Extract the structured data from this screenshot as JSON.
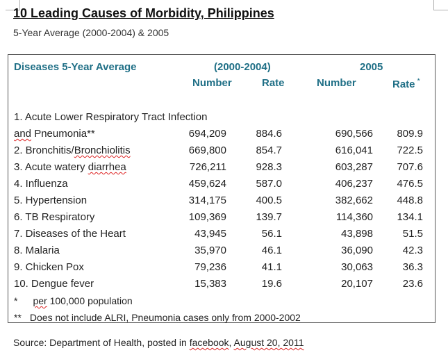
{
  "title": "10 Leading Causes of Morbidity, Philippines",
  "subtitle": "5-Year Average (2000-2004) & 2005",
  "header": {
    "diseases": "Diseases 5-Year Average",
    "period1": "(2000-2004)",
    "period2": "2005",
    "number1": "Number",
    "rate1": "Rate",
    "number2": "Number",
    "rate2": "Rate",
    "rate2_mark": "*"
  },
  "row1_line1": "1. Acute Lower Respiratory Tract Infection",
  "row1_and": "and",
  "row1_rest": " Pneumonia**",
  "rows": [
    {
      "name": "",
      "num1": "694,209",
      "rate1": "884.6",
      "num2": "690,566",
      "rate2": "809.9"
    },
    {
      "name": "2. Bronchitis/",
      "name_squig": "Bronchiolitis",
      "num1": "669,800",
      "rate1": "854.7",
      "num2": "616,041",
      "rate2": "722.5"
    },
    {
      "name": "3. Acute watery ",
      "name_squig": "diarrhea",
      "num1": "726,211",
      "rate1": "928.3",
      "num2": "603,287",
      "rate2": "707.6"
    },
    {
      "name": "4. Influenza",
      "num1": "459,624",
      "rate1": "587.0",
      "num2": "406,237",
      "rate2": "476.5"
    },
    {
      "name": "5. Hypertension",
      "num1": "314,175",
      "rate1": "400.5",
      "num2": "382,662",
      "rate2": "448.8"
    },
    {
      "name": "6. TB Respiratory",
      "num1": "109,369",
      "rate1": "139.7",
      "num2": "114,360",
      "rate2": "134.1"
    },
    {
      "name": "7. Diseases of the Heart",
      "num1": "43,945",
      "rate1": "56.1",
      "num2": "43,898",
      "rate2": "51.5"
    },
    {
      "name": "8. Malaria",
      "num1": "35,970",
      "rate1": "46.1",
      "num2": "36,090",
      "rate2": "42.3"
    },
    {
      "name": "9. Chicken Pox",
      "num1": "79,236",
      "rate1": "41.1",
      "num2": "30,063",
      "rate2": "36.3"
    },
    {
      "name": "10. Dengue fever",
      "num1": "15,383",
      "rate1": "19.6",
      "num2": "20,107",
      "rate2": "23.6"
    }
  ],
  "notes": {
    "n1_mark": "*",
    "n1_per": "per",
    "n1_text": " 100,000 population",
    "n2_mark": "**",
    "n2_text": "Does not include ALRI, Pneumonia cases only from 2000-2002"
  },
  "source": {
    "prefix": "Source: Department of Health, posted in ",
    "facebook": "facebook",
    "sep": ", ",
    "date": "August 20, 2011"
  }
}
